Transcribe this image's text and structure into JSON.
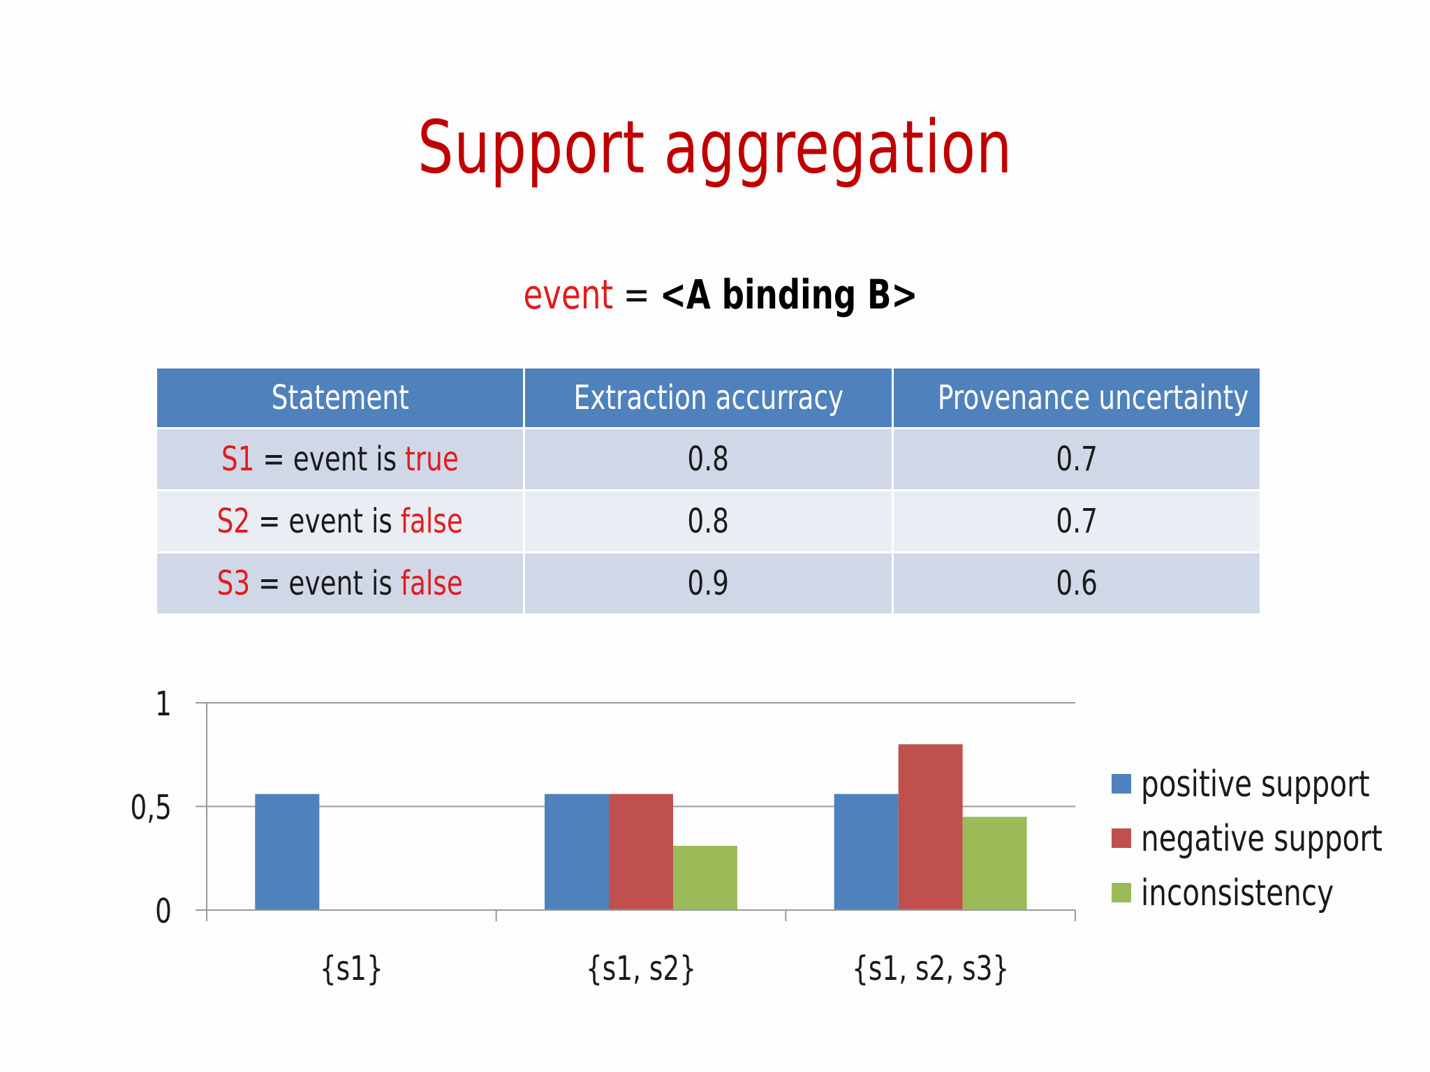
{
  "slide": {
    "title": "Support aggregation",
    "subtitle": {
      "event_word": "event",
      "equals": "=",
      "value": "<A binding B>"
    }
  },
  "table": {
    "headers": [
      "Statement",
      "Extraction accurracy",
      "Provenance uncertainty"
    ],
    "rows": [
      {
        "id": "S1",
        "mid": " = event is ",
        "truth": "true",
        "accuracy": "0.8",
        "uncertainty": "0.7"
      },
      {
        "id": "S2",
        "mid": " = event is ",
        "truth": "false",
        "accuracy": "0.8",
        "uncertainty": "0.7"
      },
      {
        "id": "S3",
        "mid": " = event is ",
        "truth": "false",
        "accuracy": "0.9",
        "uncertainty": "0.6"
      }
    ]
  },
  "chart_data": {
    "type": "bar",
    "categories": [
      "{s1}",
      "{s1, s2}",
      "{s1, s2, s3}"
    ],
    "series": [
      {
        "name": "positive support",
        "color": "#4f81bd",
        "values": [
          0.56,
          0.56,
          0.56
        ]
      },
      {
        "name": "negative support",
        "color": "#c0504d",
        "values": [
          0,
          0.56,
          0.8
        ]
      },
      {
        "name": "inconsistency",
        "color": "#9bbb59",
        "values": [
          0,
          0.31,
          0.45
        ]
      }
    ],
    "ylim": [
      0,
      1
    ],
    "yticks": [
      "0",
      "0,5",
      "1"
    ],
    "ytick_values": [
      0,
      0.5,
      1
    ],
    "grid": true,
    "legend": "right"
  }
}
